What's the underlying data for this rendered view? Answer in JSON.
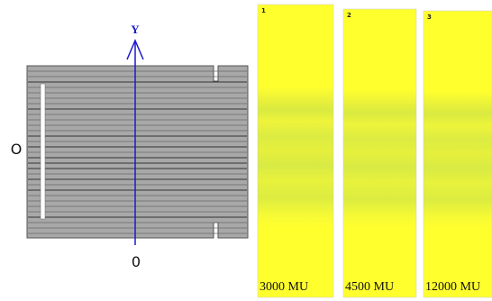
{
  "diagram": {
    "axis_label": "Y",
    "left_label": "O",
    "bottom_label": "0"
  },
  "films": [
    {
      "number": "1",
      "label": "3000 MU"
    },
    {
      "number": "2",
      "label": "4500 MU"
    },
    {
      "number": "3",
      "label": "12000 MU"
    }
  ]
}
